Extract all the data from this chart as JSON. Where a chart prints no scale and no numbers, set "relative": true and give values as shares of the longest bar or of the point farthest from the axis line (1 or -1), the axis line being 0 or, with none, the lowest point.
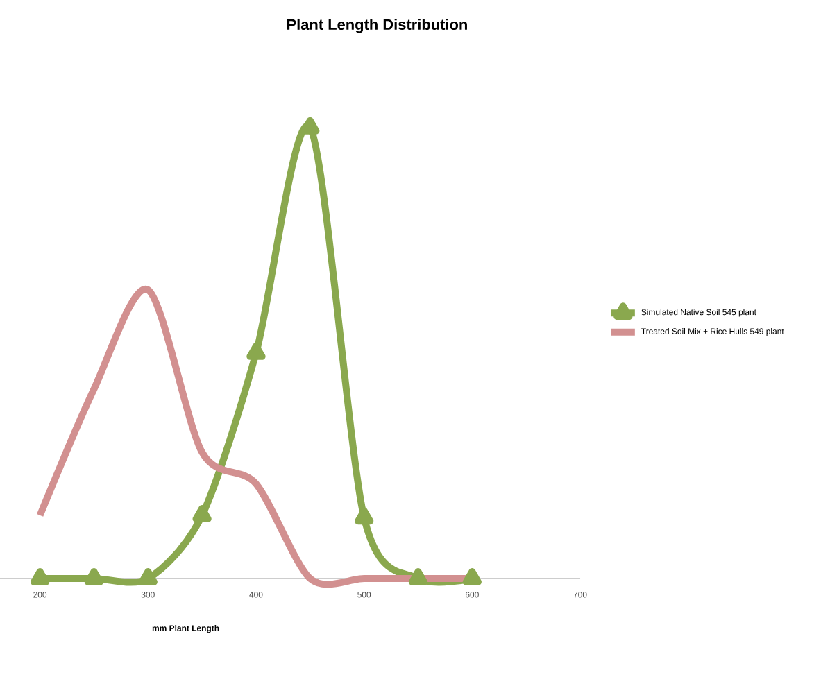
{
  "chart_data": {
    "type": "line",
    "title": "Plant Length Distribution",
    "xlabel": "mm Plant Length",
    "relative": true,
    "legend": "right",
    "xlim": [
      163,
      700
    ],
    "xticks": [
      200,
      300,
      400,
      500,
      600,
      700
    ],
    "series": [
      {
        "name": "Simulated Native Soil 545 plant",
        "color": "#8aa84e",
        "marker": "triangle",
        "x": [
          200,
          250,
          300,
          350,
          400,
          450,
          500,
          550,
          600
        ],
        "values": [
          0,
          0,
          0,
          0.14,
          0.5,
          1,
          0.135,
          0,
          0
        ]
      },
      {
        "name": "Treated Soil Mix + Rice Hulls 549 plant",
        "color": "#d29090",
        "x": [
          200,
          250,
          300,
          350,
          400,
          450,
          500,
          550,
          600
        ],
        "values": [
          0.14,
          0.42,
          0.64,
          0.28,
          0.21,
          0,
          0,
          0,
          0
        ]
      }
    ]
  }
}
